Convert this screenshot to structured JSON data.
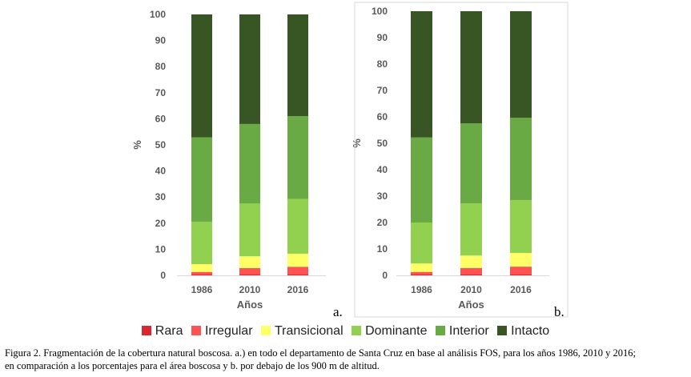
{
  "colors": {
    "Rara": "#d9272e",
    "Irregular": "#ff5353",
    "Transicional": "#ffff66",
    "Dominante": "#92d050",
    "Interior": "#6aaa45",
    "Intacto": "#375623"
  },
  "legend": [
    "Rara",
    "Irregular",
    "Transicional",
    "Dominante",
    "Interior",
    "Intacto"
  ],
  "panel_labels": [
    "a.",
    "b."
  ],
  "caption": {
    "line1": "Figura 2. Fragmentación de la cobertura natural boscosa. a.) en todo el departamento de Santa Cruz en base al análisis FOS, para los años 1986, 2010 y 2016;",
    "line2": "en comparación a los porcentajes para el área boscosa y b. por debajo de los 900 m de altitud."
  },
  "chart_data": [
    {
      "type": "bar",
      "stacked": true,
      "categories": [
        "1986",
        "2010",
        "2016"
      ],
      "xlabel": "Años",
      "ylabel": "%",
      "ylim": [
        0,
        100
      ],
      "yticks": [
        0,
        10,
        20,
        30,
        40,
        50,
        60,
        70,
        80,
        90,
        100
      ],
      "grid": false,
      "series": [
        {
          "name": "Rara",
          "values": [
            0.3,
            0.3,
            0.3
          ]
        },
        {
          "name": "Irregular",
          "values": [
            1.0,
            2.5,
            3.0
          ]
        },
        {
          "name": "Transicional",
          "values": [
            3.0,
            4.5,
            5.0
          ]
        },
        {
          "name": "Dominante",
          "values": [
            16.2,
            20.2,
            21.0
          ]
        },
        {
          "name": "Interior",
          "values": [
            32.4,
            30.5,
            31.7
          ]
        },
        {
          "name": "Intacto",
          "values": [
            47.1,
            42.0,
            39.0
          ]
        }
      ]
    },
    {
      "type": "bar",
      "stacked": true,
      "categories": [
        "1986",
        "2010",
        "2016"
      ],
      "xlabel": "Años",
      "ylabel": "%",
      "ylim": [
        0,
        100
      ],
      "yticks": [
        0,
        10,
        20,
        30,
        40,
        50,
        60,
        70,
        80,
        90,
        100
      ],
      "grid": false,
      "series": [
        {
          "name": "Rara",
          "values": [
            0.3,
            0.3,
            0.3
          ]
        },
        {
          "name": "Irregular",
          "values": [
            1.0,
            2.5,
            3.0
          ]
        },
        {
          "name": "Transicional",
          "values": [
            3.2,
            4.7,
            5.2
          ]
        },
        {
          "name": "Dominante",
          "values": [
            15.5,
            19.7,
            20.0
          ]
        },
        {
          "name": "Interior",
          "values": [
            32.2,
            30.3,
            31.2
          ]
        },
        {
          "name": "Intacto",
          "values": [
            47.8,
            42.5,
            40.3
          ]
        }
      ]
    }
  ]
}
